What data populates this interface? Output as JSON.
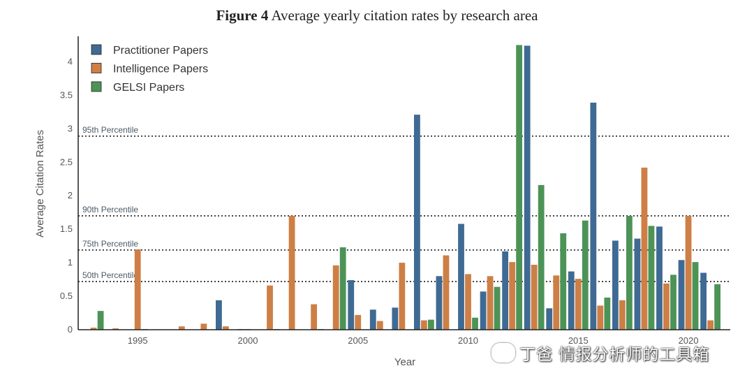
{
  "figure": {
    "label": "Figure 4",
    "caption": "Average yearly citation rates by research area"
  },
  "watermark": {
    "text": "丁爸 情报分析师的工具箱"
  },
  "colors": {
    "practitioner": "#3f6a93",
    "intelligence": "#cd7f45",
    "gelsi": "#4d9357",
    "reference_line": "#444444",
    "axis": "#222222"
  },
  "chart_data": {
    "type": "bar",
    "title": "Figure 4 Average yearly citation rates by research area",
    "xlabel": "Year",
    "ylabel": "Average Citation Rates",
    "x": [
      1993,
      1994,
      1995,
      1996,
      1997,
      1998,
      1999,
      2000,
      2001,
      2002,
      2003,
      2004,
      2005,
      2006,
      2007,
      2008,
      2009,
      2010,
      2011,
      2012,
      2013,
      2014,
      2015,
      2016,
      2017,
      2018,
      2019,
      2020,
      2021
    ],
    "xlim": [
      1992.3,
      2021.9
    ],
    "ylim": [
      0,
      4.38
    ],
    "xticks": [
      1995,
      2000,
      2005,
      2010,
      2015,
      2020
    ],
    "yticks": [
      0,
      0.5,
      1,
      1.5,
      2,
      2.5,
      3,
      3.5,
      4
    ],
    "ytick_labels": [
      "0",
      "0.5",
      "1",
      "1.5",
      "2",
      "2.5",
      "3",
      "3.5",
      "4"
    ],
    "legend_position": "top-left",
    "series": [
      {
        "name": "Practitioner Papers",
        "color_key": "practitioner",
        "values": [
          0,
          0,
          0,
          0,
          0,
          0,
          0.44,
          0.01,
          0,
          0,
          0,
          0,
          0.74,
          0.3,
          0.33,
          3.21,
          0.8,
          1.58,
          0.57,
          1.17,
          4.24,
          0.32,
          0.87,
          3.39,
          1.33,
          1.36,
          1.54,
          1.04,
          0.85
        ]
      },
      {
        "name": "Intelligence Papers",
        "color_key": "intelligence",
        "values": [
          0.03,
          0.02,
          1.2,
          0,
          0.05,
          0.09,
          0.05,
          0.01,
          0.66,
          1.7,
          0.38,
          0.96,
          0.22,
          0.13,
          1,
          0.14,
          1.11,
          0.83,
          0.8,
          1.01,
          0.97,
          0.81,
          0.76,
          0.36,
          0.44,
          2.42,
          0.69,
          1.7,
          0.14
        ]
      },
      {
        "name": "GELSI Papers",
        "color_key": "gelsi",
        "values": [
          0.28,
          0,
          0.01,
          0,
          0,
          0,
          0,
          0,
          0.01,
          0,
          0.01,
          1.23,
          0,
          0,
          0,
          0.15,
          0,
          0.18,
          0.64,
          4.25,
          2.16,
          1.44,
          1.63,
          0.48,
          1.7,
          1.55,
          0.82,
          1.01,
          0.68
        ]
      }
    ],
    "reference_lines": [
      {
        "label": "95th Percentile",
        "value": 2.89
      },
      {
        "label": "90th Percentile",
        "value": 1.7
      },
      {
        "label": "75th Percentile",
        "value": 1.19
      },
      {
        "label": "50th Percentile",
        "value": 0.72
      }
    ]
  }
}
